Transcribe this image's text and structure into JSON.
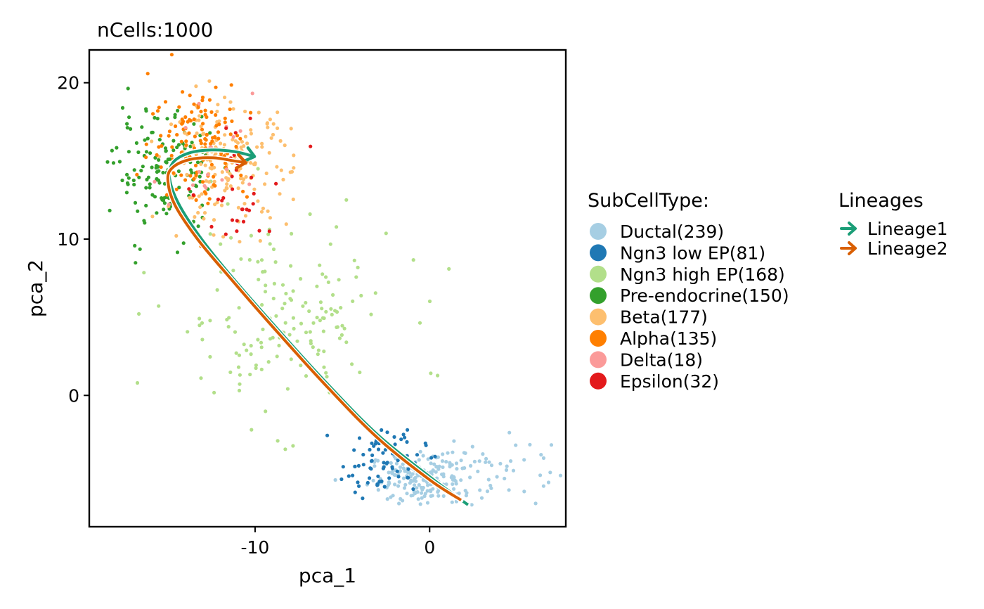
{
  "chart_data": {
    "type": "scatter",
    "title": "nCells:1000",
    "xlabel": "pca_1",
    "ylabel": "pca_2",
    "xlim": [
      -19.5,
      7.8
    ],
    "ylim": [
      -8.4,
      22.1
    ],
    "xticks": [
      -10,
      0
    ],
    "xtick_labels": [
      "-10",
      "0"
    ],
    "yticks": [
      0,
      10,
      20
    ],
    "ytick_labels": [
      "0",
      "10",
      "20"
    ],
    "grid": false,
    "legend_position": "right",
    "legend": {
      "groups_title": "SubCellType:",
      "lineages_title": "Lineages"
    },
    "groups": [
      {
        "label": "Ductal(239)",
        "color": "#A6CEE3",
        "count": 239,
        "clusters": [
          {
            "cx": -0.2,
            "cy": -5.3,
            "sx": 1.6,
            "sy": 0.8,
            "n": 200
          },
          {
            "cx": 3.3,
            "cy": -4.6,
            "sx": 1.8,
            "sy": 1.2,
            "n": 39
          }
        ]
      },
      {
        "label": "Ngn3 low EP(81)",
        "color": "#1F78B4",
        "count": 81,
        "clusters": [
          {
            "cx": -2.6,
            "cy": -4.2,
            "sx": 1.2,
            "sy": 1.0,
            "n": 81
          }
        ]
      },
      {
        "label": "Ngn3 high EP(168)",
        "color": "#B2DF8A",
        "count": 168,
        "clusters": [
          {
            "cx": -8.5,
            "cy": 5.0,
            "sx": 3.3,
            "sy": 3.2,
            "n": 168
          }
        ]
      },
      {
        "label": "Pre-endocrine(150)",
        "color": "#33A02C",
        "count": 150,
        "clusters": [
          {
            "cx": -15.2,
            "cy": 14.2,
            "sx": 1.4,
            "sy": 1.9,
            "n": 150
          }
        ]
      },
      {
        "label": "Beta(177)",
        "color": "#FDBF6F",
        "count": 177,
        "clusters": [
          {
            "cx": -11.6,
            "cy": 14.8,
            "sx": 1.8,
            "sy": 1.9,
            "n": 177
          }
        ]
      },
      {
        "label": "Alpha(135)",
        "color": "#FF7F00",
        "count": 135,
        "clusters": [
          {
            "cx": -13.2,
            "cy": 16.3,
            "sx": 1.4,
            "sy": 2.0,
            "n": 135
          }
        ]
      },
      {
        "label": "Delta(18)",
        "color": "#FB9A99",
        "count": 18,
        "clusters": [
          {
            "cx": -12.3,
            "cy": 15.5,
            "sx": 1.6,
            "sy": 2.2,
            "n": 18
          }
        ]
      },
      {
        "label": "Epsilon(32)",
        "color": "#E31A1C",
        "count": 32,
        "clusters": [
          {
            "cx": -10.8,
            "cy": 12.8,
            "sx": 1.6,
            "sy": 1.8,
            "n": 32
          }
        ]
      }
    ],
    "lineages": [
      {
        "name": "Lineage1",
        "color": "#1B9E77",
        "points": [
          [
            2.2,
            -7.0
          ],
          [
            0,
            -5.2
          ],
          [
            -3,
            -2.5
          ],
          [
            -6,
            0.9
          ],
          [
            -9,
            4.6
          ],
          [
            -11.5,
            7.8
          ],
          [
            -13.2,
            10.2
          ],
          [
            -14.4,
            12.3
          ],
          [
            -14.9,
            13.9
          ],
          [
            -14.7,
            14.9
          ],
          [
            -13.8,
            15.5
          ],
          [
            -12.5,
            15.7
          ],
          [
            -11.2,
            15.6
          ],
          [
            -10.1,
            15.3
          ]
        ]
      },
      {
        "name": "Lineage2",
        "color": "#D95F02",
        "points": [
          [
            1.8,
            -6.7
          ],
          [
            0,
            -5.4
          ],
          [
            -3,
            -2.7
          ],
          [
            -6,
            0.7
          ],
          [
            -9,
            4.4
          ],
          [
            -11.5,
            7.6
          ],
          [
            -13.3,
            10.0
          ],
          [
            -14.6,
            12.2
          ],
          [
            -15.0,
            13.8
          ],
          [
            -14.7,
            14.6
          ],
          [
            -13.7,
            15.1
          ],
          [
            -12.4,
            15.2
          ],
          [
            -11.2,
            15.0
          ],
          [
            -10.6,
            14.9
          ]
        ]
      }
    ]
  }
}
